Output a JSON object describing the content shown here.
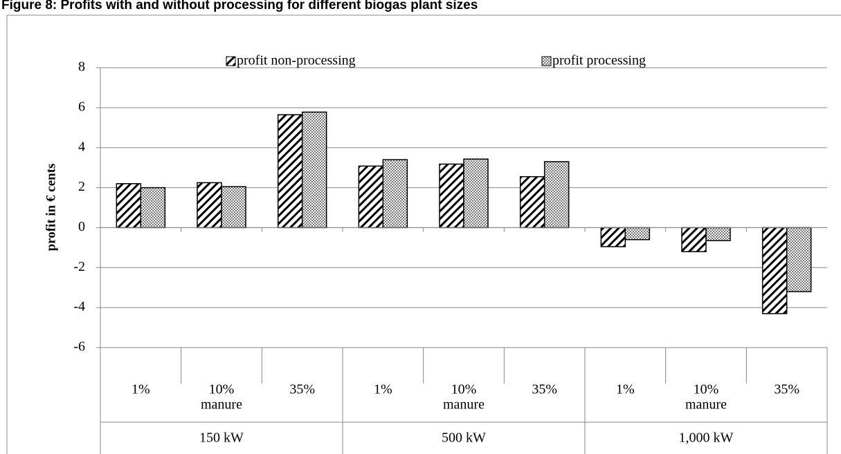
{
  "chart_data": {
    "type": "bar",
    "title": "Figure 8: Profits with and without processing for different biogas plant sizes",
    "y_label": "profit in € cents",
    "groups": [
      {
        "name": "150 kW",
        "subgroup": "manure",
        "categories": [
          "1%",
          "10%",
          "35%"
        ]
      },
      {
        "name": "500 kW",
        "subgroup": "manure",
        "categories": [
          "1%",
          "10%",
          "35%"
        ]
      },
      {
        "name": "1,000 kW",
        "subgroup": "manure",
        "categories": [
          "1%",
          "10%",
          "35%"
        ]
      }
    ],
    "series": [
      {
        "name": "profit non-processing",
        "color": "#000000",
        "pattern": "diagonal",
        "values": [
          2.2,
          2.25,
          5.65,
          3.08,
          3.18,
          2.55,
          -0.95,
          -1.2,
          -4.3
        ]
      },
      {
        "name": "profit processing",
        "color": "#000000",
        "pattern": "dots",
        "values": [
          2.0,
          2.05,
          5.78,
          3.4,
          3.43,
          3.3,
          -0.6,
          -0.65,
          -3.2
        ]
      }
    ],
    "ylim": [
      -6,
      8
    ],
    "yticks": [
      -6,
      -4,
      -2,
      0,
      2,
      4,
      6,
      8
    ],
    "grid": true,
    "legend": "top"
  }
}
